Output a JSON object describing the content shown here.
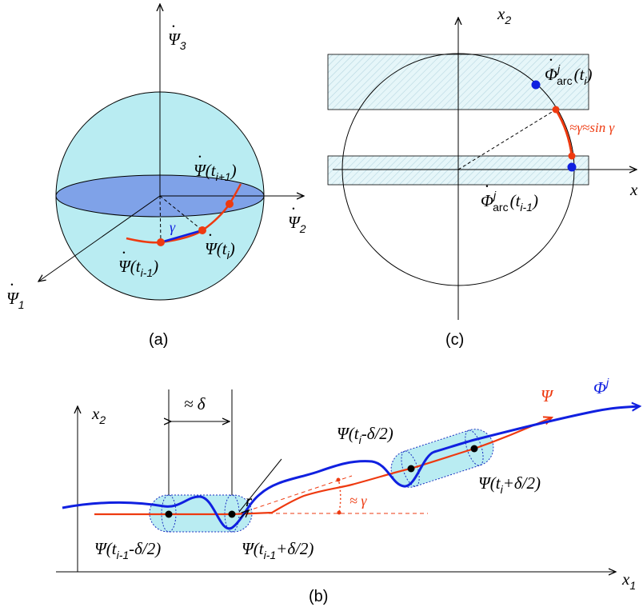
{
  "panel_a": {
    "caption": "(a)",
    "axis_3": {
      "symbol": "Ψ",
      "sub": "3"
    },
    "axis_2": {
      "symbol": "Ψ",
      "sub": "2"
    },
    "axis_1": {
      "symbol": "Ψ",
      "sub": "1"
    },
    "point_next": {
      "text": "Ψ(t",
      "sub": "i+1",
      "close": ")"
    },
    "point_cur": {
      "text": "Ψ(t",
      "sub": "i",
      "close": ")"
    },
    "point_prev": {
      "text": "Ψ(t",
      "sub": "i-1",
      "close": ")"
    },
    "gamma": "γ",
    "colors": {
      "sphere": "#b9ecf2",
      "disk": "#7fa2e8",
      "path": "#ee3a10",
      "chord": "#1020e0"
    }
  },
  "panel_c": {
    "caption": "(c)",
    "axis_x2": {
      "symbol": "x",
      "sub": "2"
    },
    "axis_x1": {
      "symbol": "x",
      "sub": "1"
    },
    "phi_top": {
      "text": "Φ",
      "sup": "j",
      "sub": "arc",
      "arg": "(t",
      "argsub": "i",
      "close": ")"
    },
    "phi_bottom": {
      "text": "Φ",
      "sup": "j",
      "sub": "arc",
      "arg": "(t",
      "argsub": "i-1",
      "close": ")"
    },
    "approx": "≈γ≈sin γ"
  },
  "panel_b": {
    "caption": "(b)",
    "axis_x2": {
      "symbol": "x",
      "sub": "2"
    },
    "axis_x1": {
      "symbol": "x",
      "sub": "1"
    },
    "delta_label": "≈ δ",
    "r_label": "r",
    "gamma_label": "≈ γ",
    "psi_label": "Ψ",
    "phi_label": {
      "text": "Φ",
      "sup": "j"
    },
    "label_left_minus": {
      "text": "Ψ(t",
      "sub": "i-1",
      "tail": "-δ/2)"
    },
    "label_left_plus": {
      "text": "Ψ(t",
      "sub": "i-1",
      "tail": "+δ/2)"
    },
    "label_right_minus": {
      "text": "Ψ(t",
      "sub": "i",
      "tail": "-δ/2)"
    },
    "label_right_plus": {
      "text": "Ψ(t",
      "sub": "i",
      "tail": "+δ/2)"
    }
  }
}
